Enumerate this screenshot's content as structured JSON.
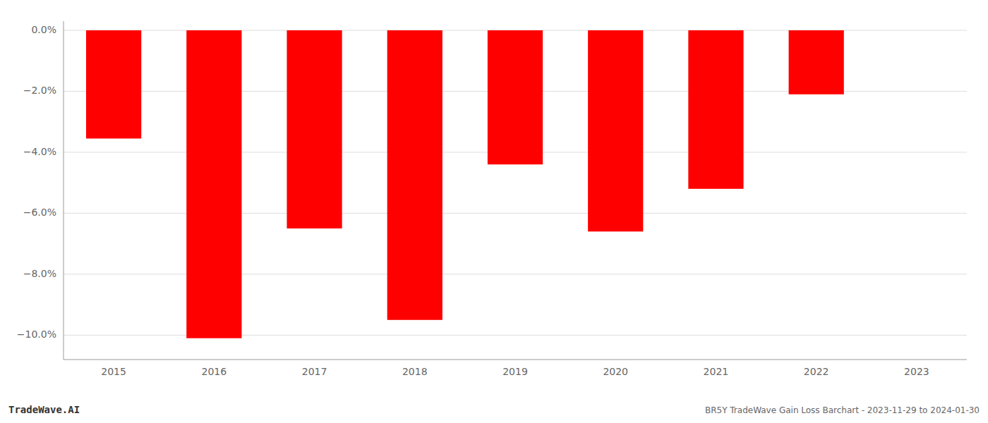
{
  "chart_data": {
    "type": "bar",
    "title": "BR5Y TradeWave Gain Loss Barchart - 2023-11-29 to 2024-01-30",
    "annotations": [
      "TradeWave.AI"
    ],
    "categories": [
      "2015",
      "2016",
      "2017",
      "2018",
      "2019",
      "2020",
      "2021",
      "2022",
      "2023"
    ],
    "values": [
      -3.55,
      -10.1,
      -6.5,
      -9.5,
      -4.4,
      -6.6,
      -5.2,
      -2.1,
      0.0
    ],
    "color": "#ff0000",
    "ylim": [
      -10.8,
      0.3
    ],
    "yticks": [
      {
        "value": 0.0,
        "label": "0.0%"
      },
      {
        "value": -2.0,
        "label": "−2.0%"
      },
      {
        "value": -4.0,
        "label": "−4.0%"
      },
      {
        "value": -6.0,
        "label": "−6.0%"
      },
      {
        "value": -8.0,
        "label": "−8.0%"
      },
      {
        "value": -10.0,
        "label": "−10.0%"
      }
    ],
    "grid": true
  }
}
